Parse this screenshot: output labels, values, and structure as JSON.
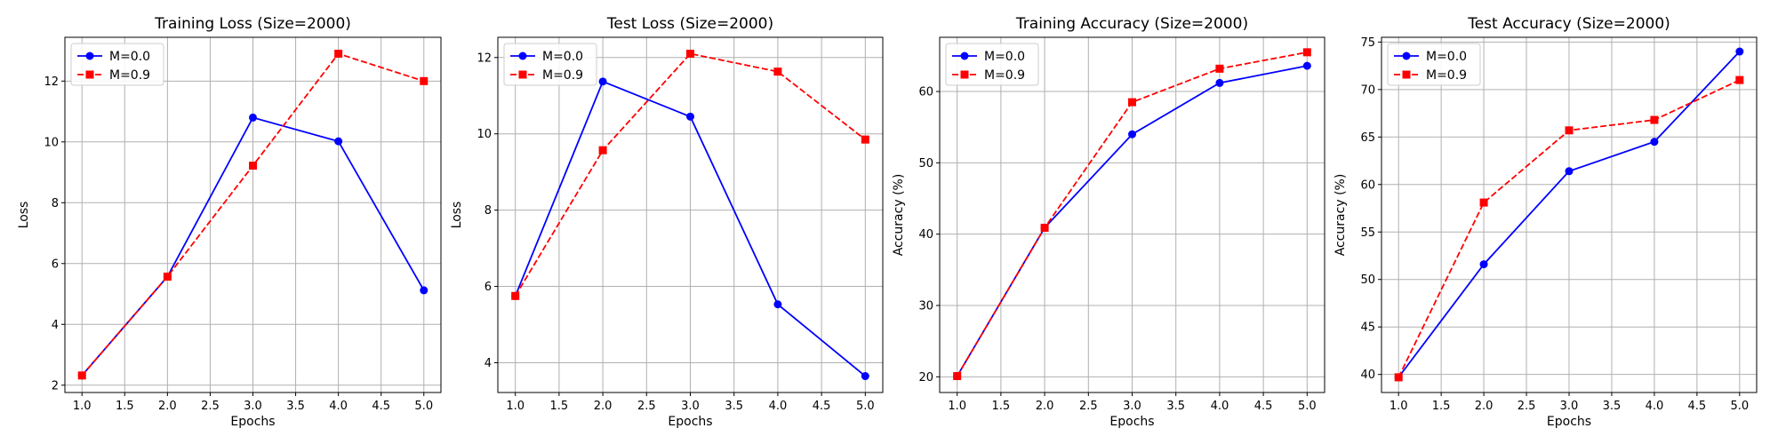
{
  "chart_data": [
    {
      "type": "line",
      "title": "Training Loss (Size=2000)",
      "xlabel": "Epochs",
      "ylabel": "Loss",
      "x": [
        1,
        2,
        3,
        4,
        5
      ],
      "xticks": [
        "1.0",
        "1.5",
        "2.0",
        "2.5",
        "3.0",
        "3.5",
        "4.0",
        "4.5",
        "5.0"
      ],
      "yticks": [
        "2",
        "4",
        "6",
        "8",
        "10",
        "12"
      ],
      "xlim": [
        0.8,
        5.2
      ],
      "ylim": [
        1.76,
        13.44
      ],
      "grid": true,
      "legend_position": "upper-left",
      "series": [
        {
          "name": "M=0.0",
          "values": [
            2.32,
            5.57,
            10.8,
            10.02,
            5.12
          ],
          "color": "#0000ff",
          "linestyle": "solid",
          "marker": "circle"
        },
        {
          "name": "M=0.9",
          "values": [
            2.32,
            5.57,
            9.22,
            12.9,
            12.0
          ],
          "color": "#ff0000",
          "linestyle": "dashed",
          "marker": "square"
        }
      ]
    },
    {
      "type": "line",
      "title": "Test Loss (Size=2000)",
      "xlabel": "Epochs",
      "ylabel": "Loss",
      "x": [
        1,
        2,
        3,
        4,
        5
      ],
      "xticks": [
        "1.0",
        "1.5",
        "2.0",
        "2.5",
        "3.0",
        "3.5",
        "4.0",
        "4.5",
        "5.0"
      ],
      "yticks": [
        "4",
        "6",
        "8",
        "10",
        "12"
      ],
      "xlim": [
        0.8,
        5.2
      ],
      "ylim": [
        3.22,
        12.53
      ],
      "grid": true,
      "legend_position": "upper-left",
      "series": [
        {
          "name": "M=0.0",
          "values": [
            5.75,
            11.37,
            10.45,
            5.53,
            3.65
          ],
          "color": "#0000ff",
          "linestyle": "solid",
          "marker": "circle"
        },
        {
          "name": "M=0.9",
          "values": [
            5.75,
            9.57,
            12.1,
            11.63,
            9.85
          ],
          "color": "#ff0000",
          "linestyle": "dashed",
          "marker": "square"
        }
      ]
    },
    {
      "type": "line",
      "title": "Training Accuracy (Size=2000)",
      "xlabel": "Epochs",
      "ylabel": "Accuracy (%)",
      "x": [
        1,
        2,
        3,
        4,
        5
      ],
      "xticks": [
        "1.0",
        "1.5",
        "2.0",
        "2.5",
        "3.0",
        "3.5",
        "4.0",
        "4.5",
        "5.0"
      ],
      "yticks": [
        "20",
        "30",
        "40",
        "50",
        "60"
      ],
      "xlim": [
        0.8,
        5.2
      ],
      "ylim": [
        17.8,
        67.6
      ],
      "grid": true,
      "legend_position": "upper-left",
      "series": [
        {
          "name": "M=0.0",
          "values": [
            20.1,
            40.9,
            54.0,
            61.2,
            63.6
          ],
          "color": "#0000ff",
          "linestyle": "solid",
          "marker": "circle"
        },
        {
          "name": "M=0.9",
          "values": [
            20.1,
            40.9,
            58.5,
            63.2,
            65.5
          ],
          "color": "#ff0000",
          "linestyle": "dashed",
          "marker": "square"
        }
      ]
    },
    {
      "type": "line",
      "title": "Test Accuracy (Size=2000)",
      "xlabel": "Epochs",
      "ylabel": "Accuracy (%)",
      "x": [
        1,
        2,
        3,
        4,
        5
      ],
      "xticks": [
        "1.0",
        "1.5",
        "2.0",
        "2.5",
        "3.0",
        "3.5",
        "4.0",
        "4.5",
        "5.0"
      ],
      "yticks": [
        "40",
        "45",
        "50",
        "55",
        "60",
        "65",
        "70",
        "75"
      ],
      "xlim": [
        0.8,
        5.2
      ],
      "ylim": [
        38.1,
        75.5
      ],
      "grid": true,
      "legend_position": "upper-left",
      "series": [
        {
          "name": "M=0.0",
          "values": [
            39.7,
            51.6,
            61.4,
            64.5,
            74.0
          ],
          "color": "#0000ff",
          "linestyle": "solid",
          "marker": "circle"
        },
        {
          "name": "M=0.9",
          "values": [
            39.7,
            58.1,
            65.7,
            66.8,
            71.0
          ],
          "color": "#ff0000",
          "linestyle": "dashed",
          "marker": "square"
        }
      ]
    }
  ]
}
